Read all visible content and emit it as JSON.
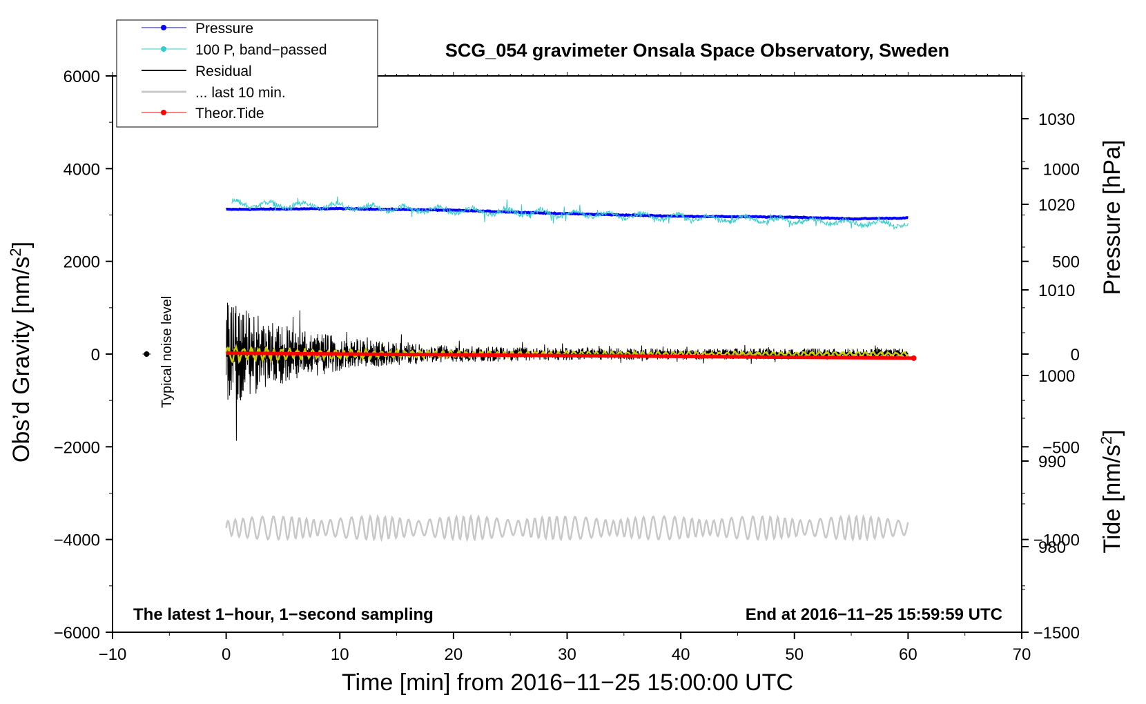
{
  "chart_data": {
    "type": "line",
    "title": "SCG_054 gravimeter Onsala Space Observatory, Sweden",
    "xlabel": "Time [min] from 2016−11−25 15:00:00 UTC",
    "ylabel": "Obs’d Gravity [nm/s²]",
    "ylabel_main": "Obs’d Gravity [nm/s",
    "ylabel_sup": "2",
    "ylabel_end": "]",
    "xlim": [
      -10,
      70
    ],
    "ylim": [
      -6000,
      6000
    ],
    "x_ticks": [
      "−10",
      "0",
      "10",
      "20",
      "30",
      "40",
      "50",
      "60",
      "70"
    ],
    "y_ticks": [
      "6000",
      "4000",
      "2000",
      "0",
      "−2000",
      "−4000",
      "−6000"
    ],
    "pressure_axis": {
      "label": "Pressure [hPa]",
      "range_hPa": [
        970,
        1035
      ],
      "ticks": [
        "1030",
        "1020",
        "1010",
        "1000",
        "990",
        "980"
      ]
    },
    "tide_axis": {
      "label": "Tide [nm/s²]",
      "label_main": "Tide [nm/s",
      "label_sup": "2",
      "label_end": "]",
      "range": [
        -1500,
        1500
      ],
      "ticks": [
        "1000",
        "500",
        "0",
        "−500",
        "−1000",
        "−1500"
      ]
    },
    "legend": {
      "placement": "top-left",
      "entries": [
        "Pressure",
        "100 P, band−passed",
        "Residual",
        "... last 10 min.",
        "Theor.Tide"
      ]
    },
    "annotations": {
      "noise": "Typical noise level",
      "bottom_left": "The latest 1−hour, 1−second sampling",
      "bottom_right": "End at 2016−11−25 15:59:59 UTC"
    },
    "series": [
      {
        "name": "Pressure",
        "axis": "pressure_hPa",
        "x": [
          0,
          10,
          20,
          30,
          40,
          50,
          55,
          60
        ],
        "values": [
          1019.4,
          1019.5,
          1019.3,
          1018.9,
          1018.6,
          1018.5,
          1018.3,
          1018.4
        ]
      },
      {
        "name": "100 P, band−passed",
        "axis": "gravity_nm_s2",
        "offset_center": 3000,
        "x_range": [
          0.5,
          60
        ],
        "amplitude_approx": 250
      },
      {
        "name": "Residual",
        "axis": "gravity_nm_s2",
        "offset_center": 0,
        "x_range": [
          0,
          60
        ],
        "amplitude_approx_start": 1500,
        "amplitude_approx_end": 150
      },
      {
        "name": "... last 10 min.",
        "axis": "gravity_nm_s2",
        "offset_center": -3750,
        "x_range": [
          0,
          60
        ],
        "amplitude_approx": 250
      },
      {
        "name": "Theor.Tide",
        "axis": "tide_nm_s2",
        "x": [
          0,
          60.5
        ],
        "values": [
          5,
          -22
        ]
      }
    ],
    "noise_level": {
      "x": -7,
      "y": 0
    }
  },
  "colors": {
    "pressure": "#0000ff",
    "bandpassed": "#33cccc",
    "residual": "#000000",
    "residual_smooth": "#cccc00",
    "last10": "#c8c8c8",
    "tide": "#ff0000"
  }
}
